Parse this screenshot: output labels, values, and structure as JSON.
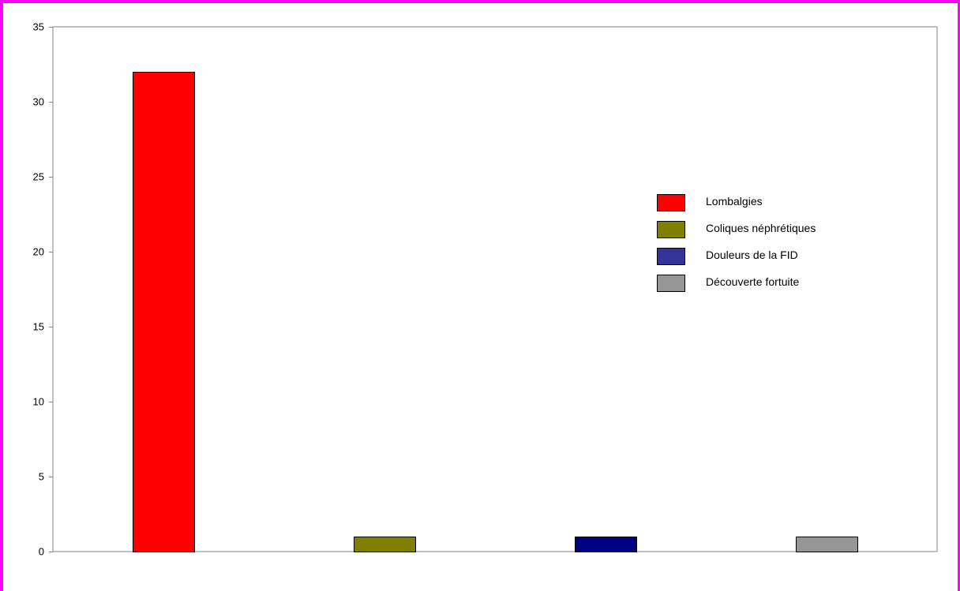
{
  "colors": {
    "frame_border": "#ff00ff",
    "axis": "#808080",
    "bar_outline": "#000000"
  },
  "chart_data": {
    "type": "bar",
    "categories": [
      "Lombalgies",
      "Coliques néphrétiques",
      "Douleurs de la FID",
      "Découverte fortuite"
    ],
    "values": [
      32,
      1,
      1,
      1
    ],
    "colors": [
      "#ff0000",
      "#808000",
      "#000080",
      "#969696"
    ],
    "ylim": [
      0,
      35
    ],
    "yticks": [
      0,
      5,
      10,
      15,
      20,
      25,
      30,
      35
    ],
    "ytick_labels": [
      "0",
      "5",
      "10",
      "15",
      "20",
      "25",
      "30",
      "35"
    ],
    "grid": false,
    "legend": {
      "placement": "right",
      "entries": [
        {
          "label": "Lombalgies",
          "color": "#ff0000"
        },
        {
          "label": "Coliques néphrétiques",
          "color": "#808000"
        },
        {
          "label": "Douleurs de la FID",
          "color": "#333399"
        },
        {
          "label": "Découverte fortuite",
          "color": "#969696"
        }
      ]
    }
  }
}
